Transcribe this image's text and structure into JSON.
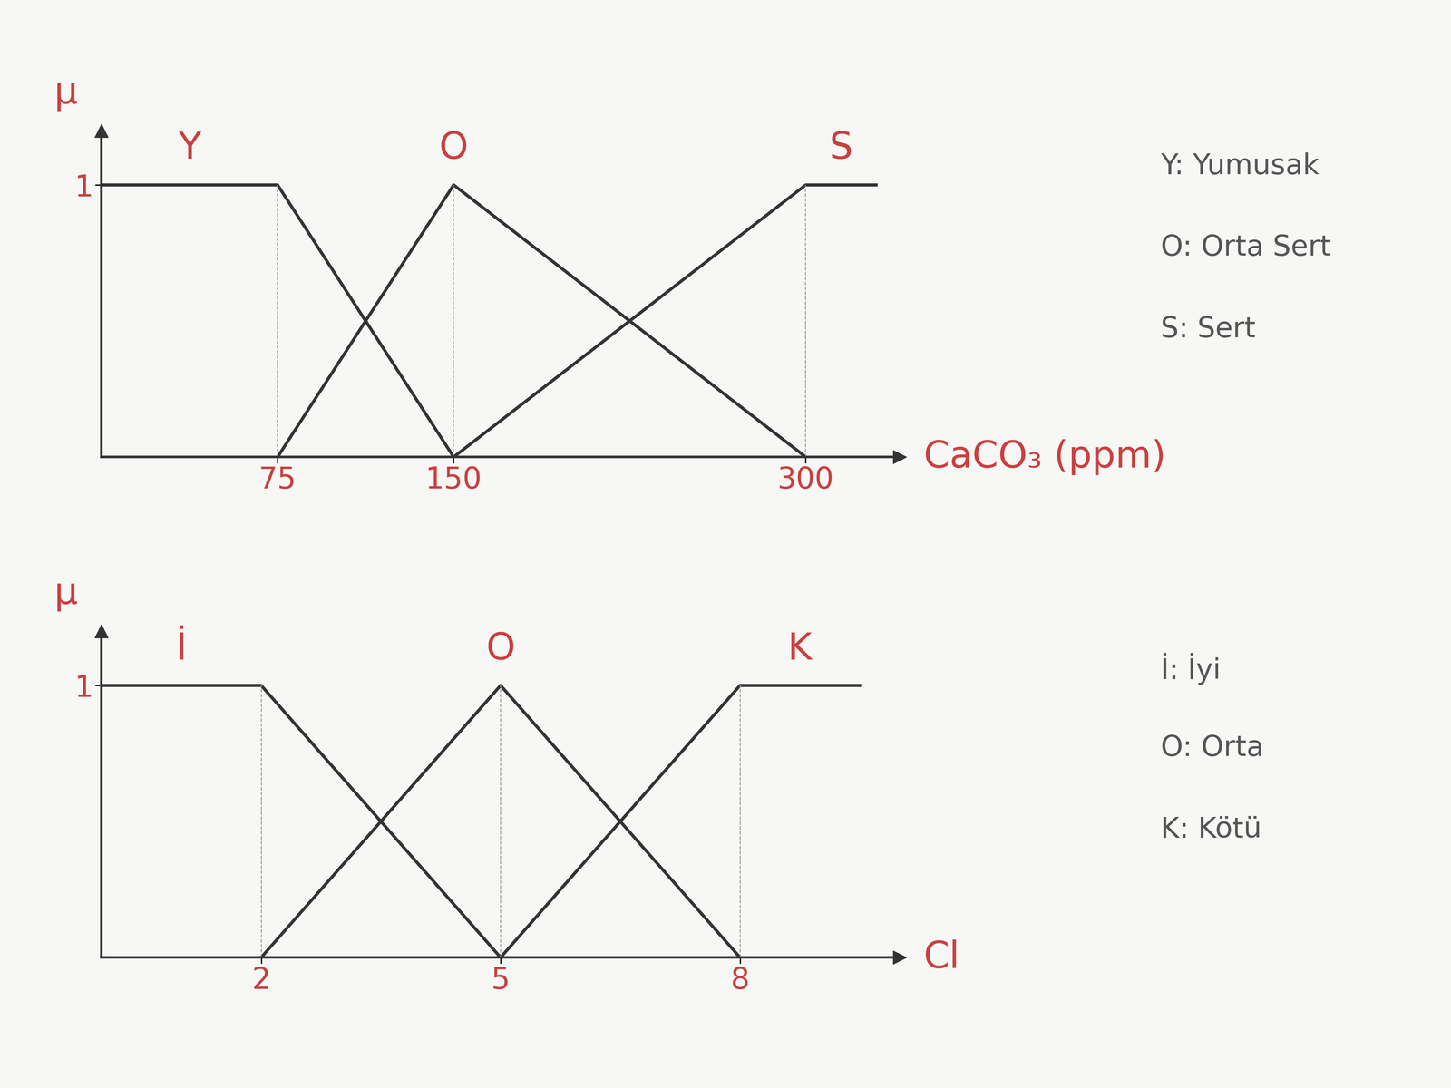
{
  "chart_data": [
    {
      "type": "line",
      "xlabel": "CaCO₃ (ppm)",
      "ylabel": "μ",
      "xlim": [
        0,
        340
      ],
      "xticks": [
        75,
        150,
        300
      ],
      "ylim": [
        0,
        1.2
      ],
      "yticks": [
        1
      ],
      "series": [
        {
          "name": "Y",
          "color": "#333333",
          "x": [
            0,
            75,
            150
          ],
          "values": [
            1,
            1,
            0
          ]
        },
        {
          "name": "O",
          "color": "#333333",
          "x": [
            75,
            150,
            300
          ],
          "values": [
            0,
            1,
            0
          ]
        },
        {
          "name": "S",
          "color": "#333333",
          "x": [
            150,
            300,
            330
          ],
          "values": [
            0,
            1,
            1
          ]
        }
      ],
      "annotations": [
        "Y: Yumusak",
        "O: Orta Sert",
        "S: Sert"
      ]
    },
    {
      "type": "line",
      "xlabel": "Cl",
      "ylabel": "μ",
      "xlim": [
        0,
        10
      ],
      "xticks": [
        2,
        5,
        8
      ],
      "ylim": [
        0,
        1.2
      ],
      "yticks": [
        1
      ],
      "series": [
        {
          "name": "İ",
          "color": "#333333",
          "x": [
            0,
            2,
            5
          ],
          "values": [
            1,
            1,
            0
          ]
        },
        {
          "name": "O",
          "color": "#333333",
          "x": [
            2,
            5,
            8
          ],
          "values": [
            0,
            1,
            0
          ]
        },
        {
          "name": "K",
          "color": "#333333",
          "x": [
            5,
            8,
            9.5
          ],
          "values": [
            0,
            1,
            1
          ]
        }
      ],
      "annotations": [
        "İ: İyi",
        "O: Orta",
        "K: Kötü"
      ]
    }
  ]
}
